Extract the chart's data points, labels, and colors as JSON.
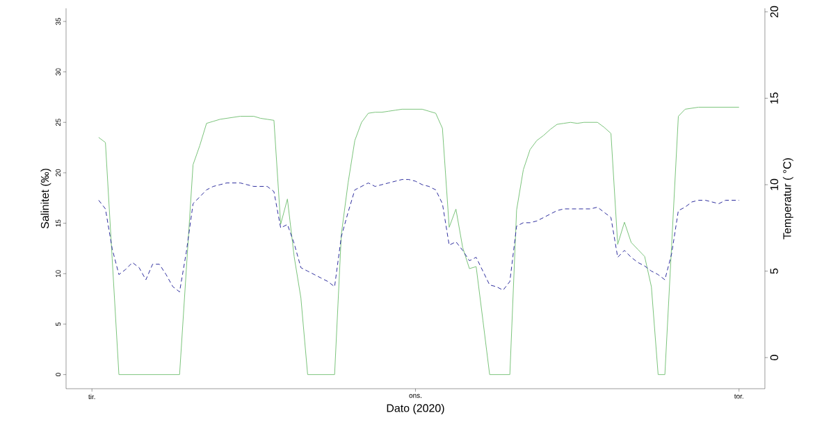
{
  "chart_data": {
    "type": "line",
    "xlabel": "Dato (2020)",
    "ylabel": "Salinitet (‰)",
    "y2label": "Temperatur ( °C)",
    "categories": [
      "tir.",
      null,
      null,
      null,
      null,
      null,
      null,
      null,
      null,
      null,
      null,
      null,
      null,
      null,
      null,
      null,
      null,
      null,
      null,
      null,
      null,
      null,
      null,
      null,
      null,
      null,
      null,
      null,
      null,
      null,
      null,
      null,
      null,
      null,
      null,
      null,
      null,
      null,
      null,
      null,
      null,
      null,
      null,
      null,
      null,
      null,
      null,
      null,
      "ons.",
      null,
      null,
      null,
      null,
      null,
      null,
      null,
      null,
      null,
      null,
      null,
      null,
      null,
      null,
      null,
      null,
      null,
      null,
      null,
      null,
      null,
      null,
      null,
      null,
      null,
      null,
      null,
      null,
      null,
      null,
      null,
      null,
      null,
      null,
      null,
      null,
      null,
      null,
      null,
      null,
      null,
      null,
      null,
      null,
      null,
      null,
      null,
      "tor."
    ],
    "ylim": [
      -1.4,
      36.3
    ],
    "yticks": [
      0,
      5,
      10,
      15,
      20,
      25,
      30,
      35
    ],
    "y2lim": [
      -1.8,
      20.2
    ],
    "y2ticks": [
      0,
      5,
      10,
      15,
      20
    ],
    "grid": false,
    "marker": "none",
    "series": [
      {
        "color": "#7cc47c",
        "line_style": "solid",
        "values": [
          null,
          23.5,
          23.0,
          11.5,
          0,
          0,
          0,
          0,
          0,
          0,
          0,
          0,
          0,
          0,
          10.4,
          20.8,
          22.7,
          24.9,
          25.1,
          25.3,
          25.4,
          25.5,
          25.6,
          25.6,
          25.6,
          25.4,
          25.3,
          25.2,
          14.9,
          17.4,
          11.7,
          7.6,
          0,
          0,
          0,
          0,
          0,
          13.9,
          19.0,
          23.2,
          25.0,
          25.9,
          26.0,
          26.0,
          26.1,
          26.2,
          26.3,
          26.3,
          26.3,
          26.3,
          26.1,
          25.9,
          24.4,
          14.6,
          16.4,
          12.6,
          10.5,
          10.7,
          5.4,
          0,
          0,
          0,
          0,
          16.3,
          20.3,
          22.3,
          23.2,
          23.7,
          24.3,
          24.8,
          24.9,
          25.0,
          24.9,
          25.0,
          25.0,
          25.0,
          24.5,
          23.9,
          12.9,
          15.1,
          13.1,
          12.4,
          11.7,
          8.7,
          0,
          0,
          12.8,
          25.6,
          26.3,
          26.4,
          26.5,
          26.5,
          26.5,
          26.5,
          26.5,
          26.5,
          26.5
        ]
      },
      {
        "color": "#2e2e9e",
        "line_style": "dashed",
        "axis": "y2",
        "values": [
          null,
          9.1,
          8.6,
          6.3,
          4.8,
          5.1,
          5.5,
          5.2,
          4.5,
          5.4,
          5.4,
          4.8,
          4.1,
          3.8,
          6.1,
          8.9,
          9.3,
          9.7,
          9.9,
          10.0,
          10.1,
          10.1,
          10.1,
          10.0,
          9.9,
          9.9,
          9.9,
          9.6,
          7.5,
          7.7,
          6.6,
          5.2,
          5.0,
          4.8,
          4.6,
          4.4,
          4.1,
          7.0,
          8.4,
          9.7,
          9.9,
          10.1,
          9.9,
          10.0,
          10.1,
          10.2,
          10.3,
          10.3,
          10.2,
          10.0,
          9.9,
          9.7,
          8.9,
          6.5,
          6.7,
          6.2,
          5.6,
          5.8,
          5.0,
          4.2,
          4.1,
          3.9,
          4.4,
          7.6,
          7.8,
          7.8,
          7.9,
          8.1,
          8.3,
          8.5,
          8.6,
          8.6,
          8.6,
          8.6,
          8.6,
          8.7,
          8.4,
          8.1,
          5.8,
          6.2,
          5.8,
          5.5,
          5.3,
          5.0,
          4.8,
          4.5,
          6.0,
          8.5,
          8.7,
          9.0,
          9.1,
          9.1,
          9.0,
          8.9,
          9.1,
          9.1,
          9.1
        ]
      }
    ]
  }
}
